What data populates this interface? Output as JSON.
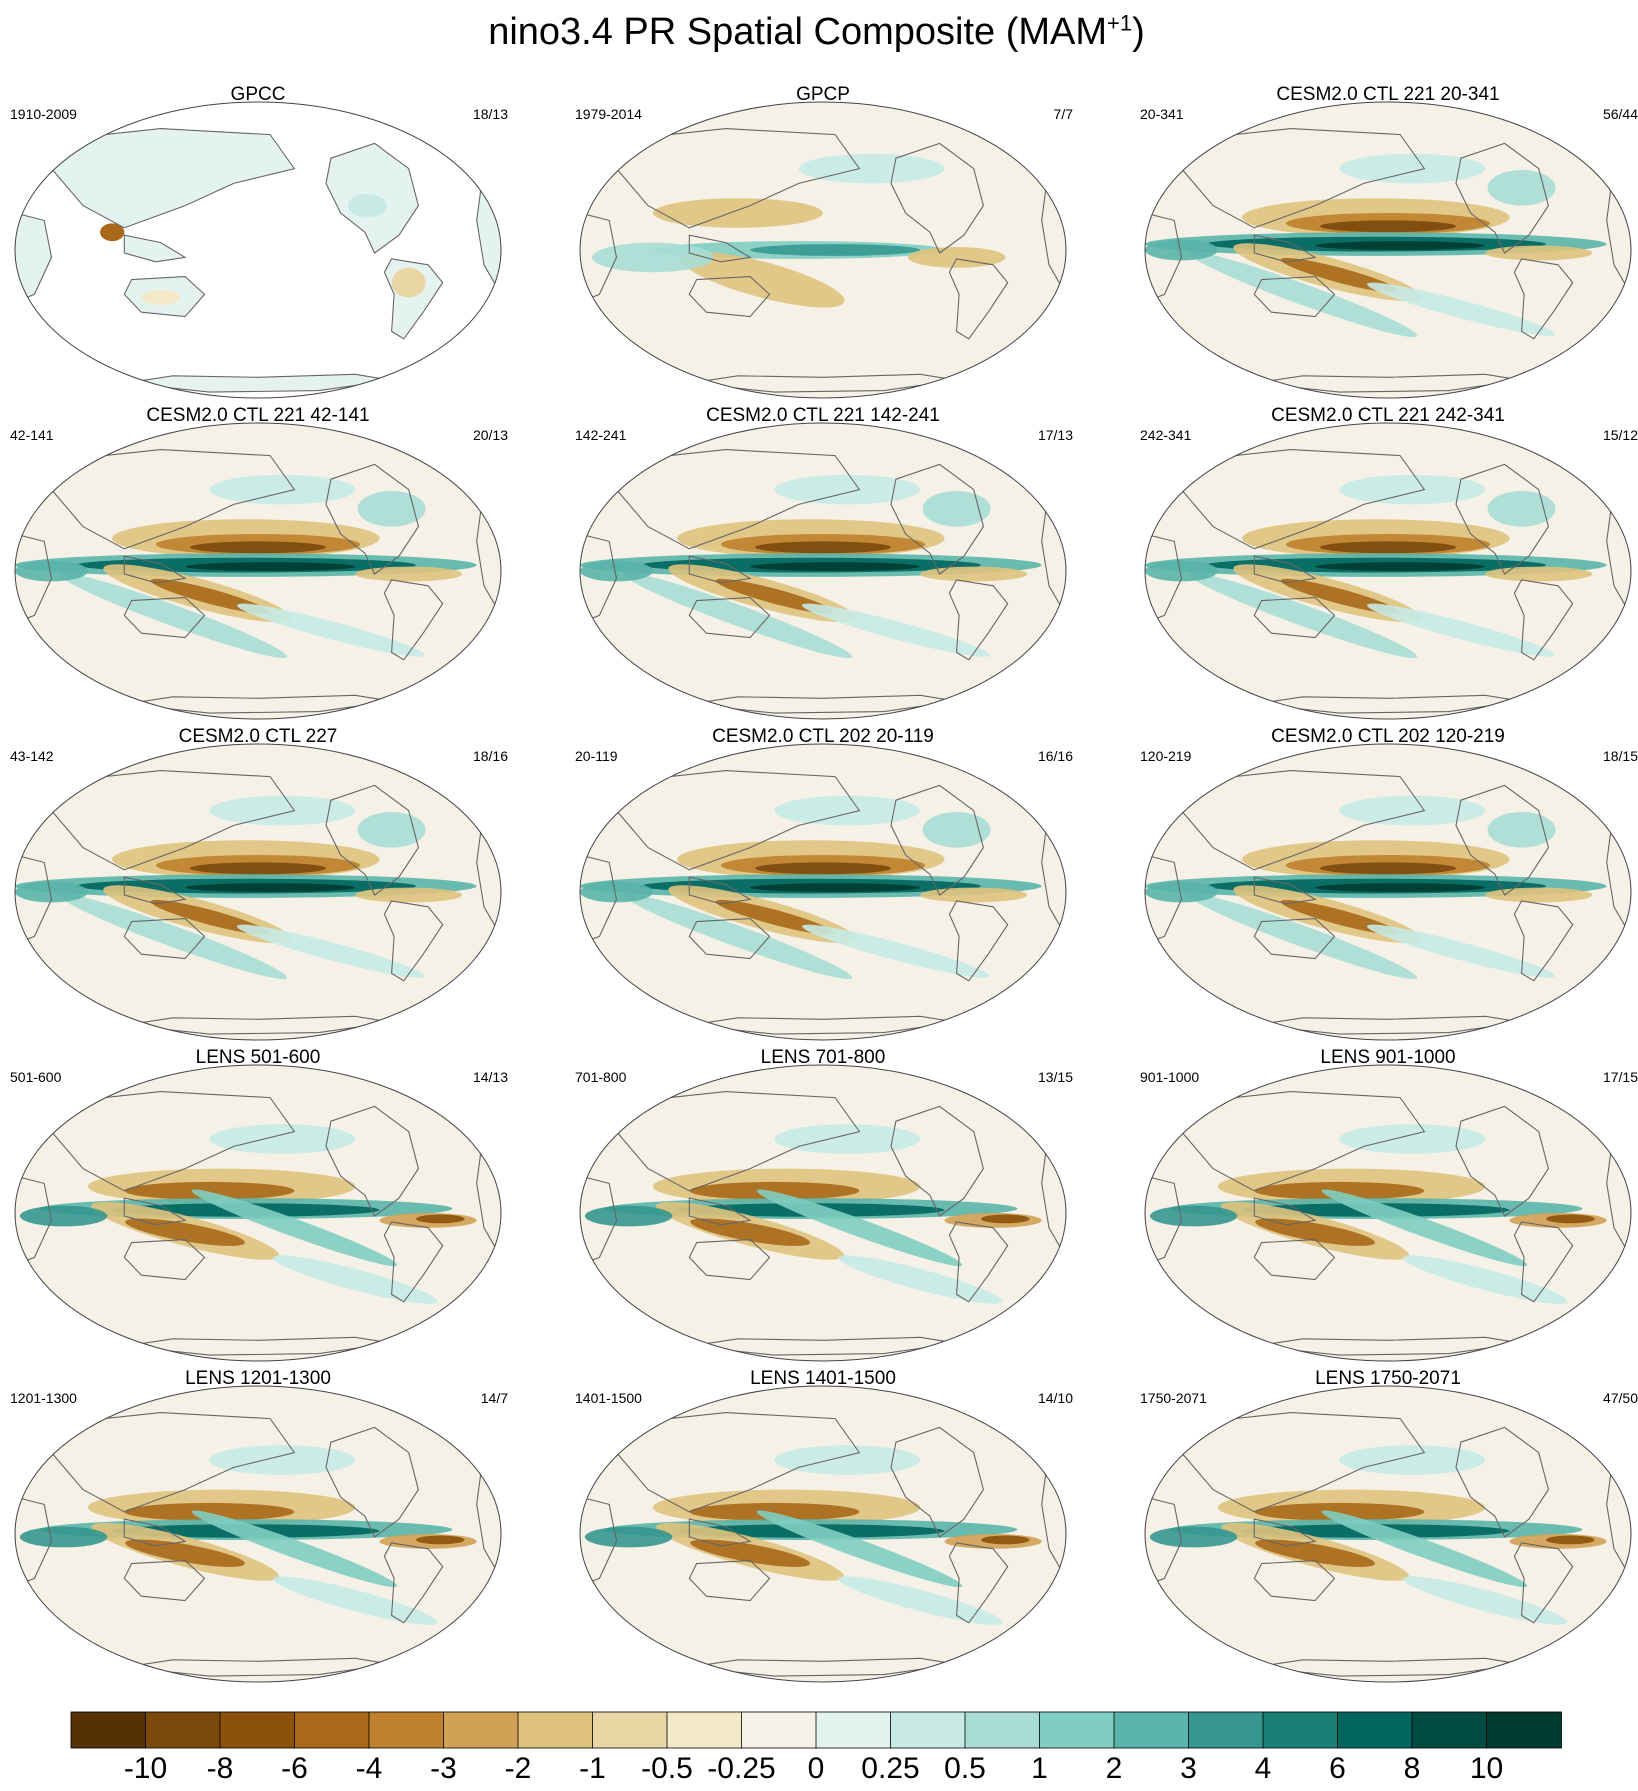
{
  "title": {
    "main": "nino3.4 PR Spatial Composite (MAM",
    "superscript": "+1",
    "close": ")"
  },
  "panels": [
    {
      "title": "GPCC",
      "period": "1910-2009",
      "counts": "18/13",
      "style": "obs-land"
    },
    {
      "title": "GPCP",
      "period": "1979-2014",
      "counts": "7/7",
      "style": "obs"
    },
    {
      "title": "CESM2.0 CTL 221 20-341",
      "period": "20-341",
      "counts": "56/44",
      "style": "model"
    },
    {
      "title": "CESM2.0 CTL 221 42-141",
      "period": "42-141",
      "counts": "20/13",
      "style": "model"
    },
    {
      "title": "CESM2.0 CTL 221 142-241",
      "period": "142-241",
      "counts": "17/13",
      "style": "model"
    },
    {
      "title": "CESM2.0 CTL 221 242-341",
      "period": "242-341",
      "counts": "15/12",
      "style": "model"
    },
    {
      "title": "CESM2.0 CTL 227",
      "period": "43-142",
      "counts": "18/16",
      "style": "model"
    },
    {
      "title": "CESM2.0 CTL 202 20-119",
      "period": "20-119",
      "counts": "16/16",
      "style": "model"
    },
    {
      "title": "CESM2.0 CTL 202 120-219",
      "period": "120-219",
      "counts": "18/15",
      "style": "model"
    },
    {
      "title": "LENS 501-600",
      "period": "501-600",
      "counts": "14/13",
      "style": "lens"
    },
    {
      "title": "LENS 701-800",
      "period": "701-800",
      "counts": "13/15",
      "style": "lens"
    },
    {
      "title": "LENS 901-1000",
      "period": "901-1000",
      "counts": "17/15",
      "style": "lens"
    },
    {
      "title": "LENS 1201-1300",
      "period": "1201-1300",
      "counts": "14/7",
      "style": "lens"
    },
    {
      "title": "LENS 1401-1500",
      "period": "1401-1500",
      "counts": "14/10",
      "style": "lens"
    },
    {
      "title": "LENS 1750-2071",
      "period": "1750-2071",
      "counts": "47/50",
      "style": "lens"
    }
  ],
  "colorbar": {
    "labels": [
      "-10",
      "-8",
      "-6",
      "-4",
      "-3",
      "-2",
      "-1",
      "-0.5",
      "-0.25",
      "0",
      "0.25",
      "0.5",
      "1",
      "2",
      "3",
      "4",
      "6",
      "8",
      "10"
    ],
    "colors": [
      "#543005",
      "#7a4a0c",
      "#8c510a",
      "#a9681a",
      "#bf812d",
      "#d1a155",
      "#dfc27d",
      "#ead5a5",
      "#f3e8c8",
      "#f6f1e6",
      "#e5f3f0",
      "#c7eae5",
      "#a7ddd4",
      "#80cdc1",
      "#5ab4a9",
      "#35978f",
      "#1a7f74",
      "#01665e",
      "#014c42",
      "#003c30"
    ]
  }
}
